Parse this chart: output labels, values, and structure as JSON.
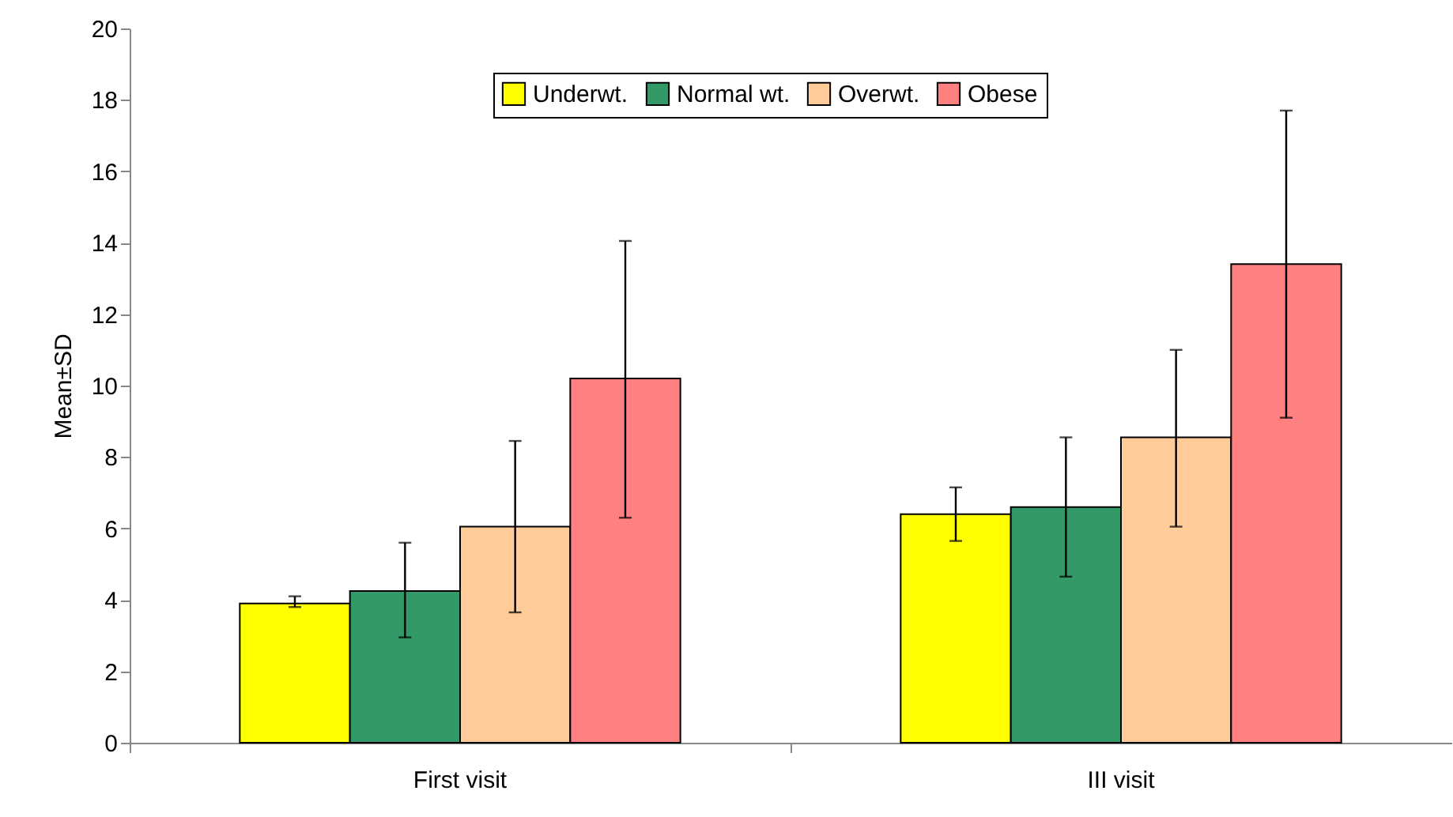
{
  "chart_data": {
    "type": "bar",
    "ylabel": "Mean±SD",
    "categories": [
      "First visit",
      "III visit"
    ],
    "series": [
      {
        "name": "Underwt.",
        "color": "#ffff00",
        "values": [
          3.9,
          6.4
        ],
        "errors": [
          [
            3.8,
            4.1
          ],
          [
            5.65,
            7.15
          ]
        ]
      },
      {
        "name": "Normal wt.",
        "color": "#339966",
        "values": [
          4.25,
          6.6
        ],
        "errors": [
          [
            2.95,
            5.6
          ],
          [
            4.65,
            8.55
          ]
        ]
      },
      {
        "name": "Overwt.",
        "color": "#ffcc99",
        "values": [
          6.05,
          8.55
        ],
        "errors": [
          [
            3.65,
            8.45
          ],
          [
            6.05,
            11.0
          ]
        ]
      },
      {
        "name": "Obese",
        "color": "#ff8080",
        "values": [
          10.2,
          13.4
        ],
        "errors": [
          [
            6.3,
            14.05
          ],
          [
            9.1,
            17.7
          ]
        ]
      }
    ],
    "ylim": [
      0,
      20
    ],
    "yticks": [
      0,
      2,
      4,
      6,
      8,
      10,
      12,
      14,
      16,
      18,
      20
    ],
    "grid": false,
    "legend": "top"
  }
}
